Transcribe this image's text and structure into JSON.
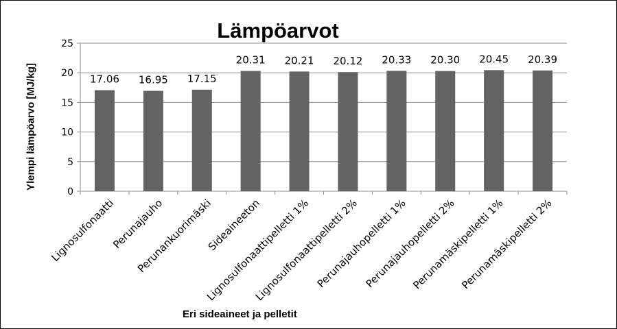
{
  "chart_data": {
    "type": "bar",
    "title": "Lämpöarvot",
    "xlabel": "Eri sideaineet ja pelletit",
    "ylabel": "Ylempi lämpöarvo [MJ/kg]",
    "ylim": [
      0,
      25
    ],
    "yticks": [
      0,
      5,
      10,
      15,
      20,
      25
    ],
    "grid": true,
    "legend": "none",
    "bar_color": "#636363",
    "categories": [
      "Lignosulfonaatti",
      "Perunajauho",
      "Perunankuorimäski",
      "Sideaineeton",
      "Lignosulfonaattipelletti 1%",
      "Lignosulfonaattipelletti 2%",
      "Perunajauhopelletti 1%",
      "Perunajauhopelletti 2%",
      "Perunamäskipelletti 1%",
      "Perunamäskipelletti 2%"
    ],
    "values": [
      17.06,
      16.95,
      17.15,
      20.31,
      20.21,
      20.12,
      20.33,
      20.3,
      20.45,
      20.39
    ],
    "data_labels": [
      "17.06",
      "16.95",
      "17.15",
      "20.31",
      "20.21",
      "20.12",
      "20.33",
      "20.30",
      "20.45",
      "20.39"
    ]
  }
}
